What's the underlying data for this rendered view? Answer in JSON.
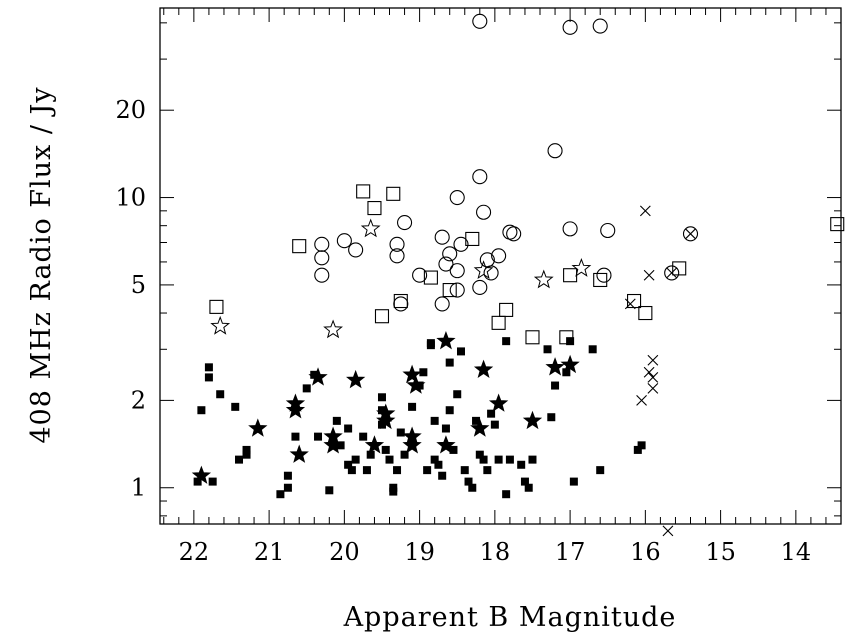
{
  "chart_data": {
    "type": "scatter",
    "title": "",
    "xlabel": "Apparent B Magnitude",
    "ylabel": "408 MHz Radio Flux / Jy",
    "x_reversed": true,
    "y_scale": "log",
    "xlim": [
      22.45,
      13.4
    ],
    "ylim": [
      0.75,
      45
    ],
    "grid": false,
    "legend": "none",
    "x_ticks": [
      {
        "value": 22,
        "label": "22"
      },
      {
        "value": 21,
        "label": "21"
      },
      {
        "value": 20,
        "label": "20"
      },
      {
        "value": 19,
        "label": "19"
      },
      {
        "value": 18,
        "label": "18"
      },
      {
        "value": 17,
        "label": "17"
      },
      {
        "value": 16,
        "label": "16"
      },
      {
        "value": 15,
        "label": "15"
      },
      {
        "value": 14,
        "label": "14"
      }
    ],
    "y_ticks": [
      {
        "value": 1,
        "label": "1"
      },
      {
        "value": 2,
        "label": "2"
      },
      {
        "value": 5,
        "label": "5"
      },
      {
        "value": 10,
        "label": "10"
      },
      {
        "value": 20,
        "label": "20"
      }
    ],
    "series": [
      {
        "marker": "open-circle",
        "points": [
          [
            18.2,
            40.5
          ],
          [
            17.0,
            38.6
          ],
          [
            16.6,
            39.0
          ],
          [
            17.2,
            14.5
          ],
          [
            18.2,
            11.8
          ],
          [
            18.5,
            10.0
          ],
          [
            18.15,
            8.9
          ],
          [
            19.2,
            8.2
          ],
          [
            17.0,
            7.8
          ],
          [
            16.5,
            7.7
          ],
          [
            18.7,
            7.3
          ],
          [
            17.8,
            7.6
          ],
          [
            17.75,
            7.5
          ],
          [
            20.0,
            7.1
          ],
          [
            20.3,
            6.9
          ],
          [
            19.3,
            6.9
          ],
          [
            18.6,
            6.4
          ],
          [
            19.85,
            6.6
          ],
          [
            18.45,
            6.9
          ],
          [
            20.3,
            6.2
          ],
          [
            19.3,
            6.3
          ],
          [
            18.1,
            6.1
          ],
          [
            18.65,
            5.9
          ],
          [
            17.95,
            6.3
          ],
          [
            18.5,
            5.6
          ],
          [
            18.05,
            5.5
          ],
          [
            20.3,
            5.4
          ],
          [
            19.0,
            5.4
          ],
          [
            16.55,
            5.4
          ],
          [
            18.2,
            4.9
          ],
          [
            18.5,
            4.8
          ],
          [
            19.25,
            4.3
          ],
          [
            18.7,
            4.3
          ]
        ]
      },
      {
        "marker": "open-square",
        "points": [
          [
            19.75,
            10.5
          ],
          [
            19.35,
            10.3
          ],
          [
            19.6,
            9.2
          ],
          [
            18.3,
            7.2
          ],
          [
            20.6,
            6.8
          ],
          [
            13.45,
            8.1
          ],
          [
            15.55,
            5.7
          ],
          [
            17.0,
            5.4
          ],
          [
            16.6,
            5.2
          ],
          [
            18.85,
            5.3
          ],
          [
            18.6,
            4.8
          ],
          [
            19.25,
            4.4
          ],
          [
            16.15,
            4.4
          ],
          [
            17.85,
            4.1
          ],
          [
            16.0,
            4.0
          ],
          [
            19.5,
            3.9
          ],
          [
            17.95,
            3.7
          ],
          [
            21.7,
            4.2
          ],
          [
            17.5,
            3.3
          ],
          [
            17.05,
            3.3
          ]
        ]
      },
      {
        "marker": "open-star",
        "points": [
          [
            21.65,
            3.6
          ],
          [
            20.15,
            3.5
          ],
          [
            19.65,
            7.8
          ],
          [
            18.15,
            5.6
          ],
          [
            17.35,
            5.2
          ],
          [
            16.85,
            5.7
          ]
        ]
      },
      {
        "marker": "cross",
        "points": [
          [
            16.0,
            9.0
          ],
          [
            15.95,
            5.4
          ],
          [
            16.2,
            4.3
          ],
          [
            15.9,
            2.75
          ],
          [
            15.95,
            2.5
          ],
          [
            15.9,
            2.4
          ],
          [
            15.9,
            2.2
          ],
          [
            16.05,
            2.0
          ],
          [
            15.7,
            0.71
          ]
        ]
      },
      {
        "marker": "circled-cross",
        "points": [
          [
            15.4,
            7.5
          ],
          [
            15.65,
            5.5
          ]
        ]
      },
      {
        "marker": "filled-star",
        "points": [
          [
            21.9,
            1.1
          ],
          [
            21.15,
            1.6
          ],
          [
            20.65,
            1.95
          ],
          [
            20.65,
            1.85
          ],
          [
            20.6,
            1.3
          ],
          [
            20.15,
            1.5
          ],
          [
            20.15,
            1.4
          ],
          [
            20.35,
            2.4
          ],
          [
            19.85,
            2.35
          ],
          [
            19.6,
            1.4
          ],
          [
            19.45,
            1.8
          ],
          [
            19.45,
            1.7
          ],
          [
            19.1,
            2.45
          ],
          [
            19.05,
            2.25
          ],
          [
            19.1,
            1.5
          ],
          [
            19.1,
            1.4
          ],
          [
            18.65,
            3.2
          ],
          [
            18.65,
            1.4
          ],
          [
            18.2,
            1.6
          ],
          [
            18.15,
            2.55
          ],
          [
            17.95,
            1.95
          ],
          [
            17.5,
            1.7
          ],
          [
            17.2,
            2.6
          ],
          [
            17.0,
            2.65
          ]
        ]
      },
      {
        "marker": "filled-square",
        "points": [
          [
            21.95,
            1.05
          ],
          [
            21.9,
            1.85
          ],
          [
            21.8,
            2.4
          ],
          [
            21.8,
            2.6
          ],
          [
            21.75,
            1.05
          ],
          [
            21.65,
            2.1
          ],
          [
            21.45,
            1.9
          ],
          [
            21.4,
            1.25
          ],
          [
            21.3,
            1.35
          ],
          [
            21.3,
            1.3
          ],
          [
            20.85,
            0.95
          ],
          [
            20.75,
            1.1
          ],
          [
            20.75,
            1.0
          ],
          [
            20.65,
            1.5
          ],
          [
            20.5,
            2.2
          ],
          [
            20.4,
            2.45
          ],
          [
            20.35,
            1.5
          ],
          [
            20.2,
            0.98
          ],
          [
            20.1,
            1.7
          ],
          [
            20.05,
            1.4
          ],
          [
            19.95,
            1.6
          ],
          [
            19.95,
            1.2
          ],
          [
            19.9,
            1.15
          ],
          [
            19.85,
            1.25
          ],
          [
            19.75,
            1.5
          ],
          [
            19.7,
            1.15
          ],
          [
            19.65,
            1.3
          ],
          [
            19.5,
            2.05
          ],
          [
            19.5,
            1.85
          ],
          [
            19.5,
            1.65
          ],
          [
            19.45,
            1.35
          ],
          [
            19.4,
            1.25
          ],
          [
            19.35,
            1.0
          ],
          [
            19.35,
            0.97
          ],
          [
            19.3,
            1.15
          ],
          [
            19.25,
            1.55
          ],
          [
            19.2,
            1.3
          ],
          [
            19.1,
            1.9
          ],
          [
            19.0,
            2.25
          ],
          [
            18.95,
            2.5
          ],
          [
            18.9,
            1.15
          ],
          [
            18.85,
            3.15
          ],
          [
            18.85,
            3.1
          ],
          [
            18.8,
            1.7
          ],
          [
            18.8,
            1.25
          ],
          [
            18.75,
            1.2
          ],
          [
            18.7,
            1.1
          ],
          [
            18.65,
            1.6
          ],
          [
            18.6,
            2.7
          ],
          [
            18.6,
            1.85
          ],
          [
            18.55,
            1.35
          ],
          [
            18.5,
            2.1
          ],
          [
            18.45,
            2.95
          ],
          [
            18.4,
            1.15
          ],
          [
            18.35,
            1.05
          ],
          [
            18.3,
            1.0
          ],
          [
            18.25,
            1.7
          ],
          [
            18.2,
            1.3
          ],
          [
            18.15,
            1.25
          ],
          [
            18.1,
            1.15
          ],
          [
            18.05,
            1.8
          ],
          [
            18.0,
            1.65
          ],
          [
            17.95,
            1.25
          ],
          [
            17.85,
            3.2
          ],
          [
            17.85,
            0.95
          ],
          [
            17.8,
            1.25
          ],
          [
            17.65,
            1.2
          ],
          [
            17.6,
            1.05
          ],
          [
            17.55,
            1.0
          ],
          [
            17.5,
            1.25
          ],
          [
            17.3,
            3.0
          ],
          [
            17.25,
            1.75
          ],
          [
            17.2,
            2.25
          ],
          [
            17.05,
            2.5
          ],
          [
            17.0,
            3.2
          ],
          [
            16.95,
            1.05
          ],
          [
            16.7,
            3.0
          ],
          [
            16.6,
            1.15
          ],
          [
            16.1,
            1.35
          ],
          [
            16.05,
            1.4
          ]
        ]
      }
    ]
  }
}
